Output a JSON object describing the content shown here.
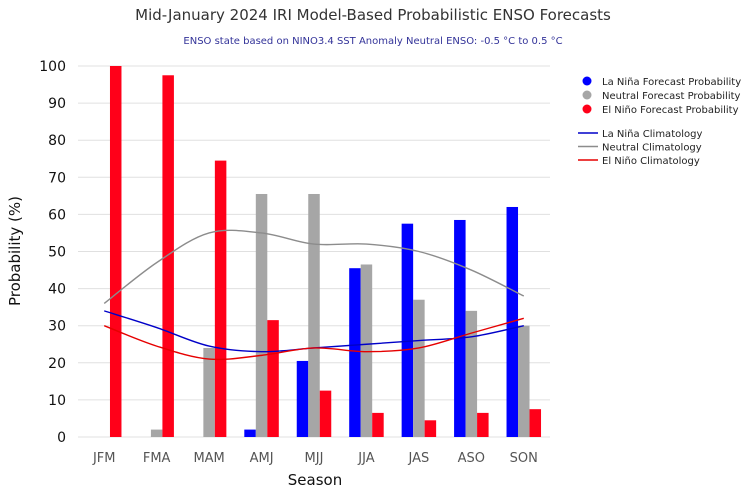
{
  "chart_data": {
    "type": "bar",
    "title": "Mid-January 2024 IRI Model-Based Probabilistic ENSO Forecasts",
    "subtitle": "ENSO state based on NINO3.4 SST Anomaly Neutral ENSO: -0.5 °C to 0.5 °C",
    "xlabel": "Season",
    "ylabel": "Probability (%)",
    "ylim": [
      0,
      100
    ],
    "yticks": [
      0,
      10,
      20,
      30,
      40,
      50,
      60,
      70,
      80,
      90,
      100
    ],
    "grid": true,
    "legend_position": "right",
    "categories": [
      "JFM",
      "FMA",
      "MAM",
      "AMJ",
      "MJJ",
      "JJA",
      "JAS",
      "ASO",
      "SON"
    ],
    "series": [
      {
        "name": "La Niña Forecast Probability",
        "kind": "bar",
        "color": "#0000ff",
        "values": [
          0,
          0,
          0,
          2,
          20.5,
          45.5,
          57.5,
          58.5,
          62
        ]
      },
      {
        "name": "Neutral Forecast Probability",
        "kind": "bar",
        "color": "#a6a6a6",
        "values": [
          0,
          2,
          24,
          65.5,
          65.5,
          46.5,
          37,
          34,
          30
        ]
      },
      {
        "name": "El Niño Forecast Probability",
        "kind": "bar",
        "color": "#ff0019",
        "values": [
          100,
          97.5,
          74.5,
          31.5,
          12.5,
          6.5,
          4.5,
          6.5,
          7.5
        ]
      },
      {
        "name": "La Niña Climatology",
        "kind": "line",
        "color": "#0000c8",
        "values": [
          34,
          29.5,
          24.5,
          23,
          24,
          25,
          26,
          27,
          30
        ]
      },
      {
        "name": "Neutral Climatology",
        "kind": "line",
        "color": "#8c8c8c",
        "values": [
          36,
          47,
          55,
          55,
          52,
          52,
          50,
          45,
          38
        ]
      },
      {
        "name": "El Niño Climatology",
        "kind": "line",
        "color": "#e60000",
        "values": [
          30,
          24.5,
          21,
          22,
          24,
          23,
          24,
          28,
          32
        ]
      }
    ]
  }
}
